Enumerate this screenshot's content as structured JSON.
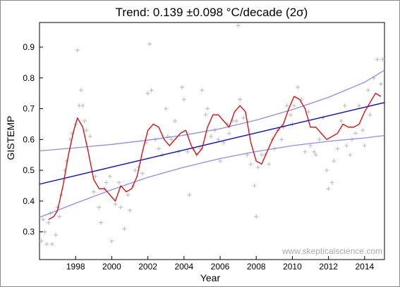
{
  "chart_data": {
    "type": "line",
    "title": "Trend: 0.139 ±0.098 °C/decade (2σ)",
    "xlabel": "Year",
    "ylabel": "GISTEMP",
    "xlim": [
      1996.0,
      2015.1
    ],
    "ylim": [
      0.21,
      0.98
    ],
    "x_ticks": [
      1998,
      2000,
      2002,
      2004,
      2006,
      2008,
      2010,
      2012,
      2014
    ],
    "y_ticks": [
      0.3,
      0.4,
      0.5,
      0.6,
      0.7,
      0.8,
      0.9
    ],
    "grid": false,
    "watermark": "www.skepticalscience.com",
    "colors": {
      "monthly": "#c0c0c0",
      "running_mean": "#e00000",
      "trend": "#0000c8",
      "confidence": "#8c8cf0"
    },
    "trend": {
      "x": [
        1996.0,
        2015.1
      ],
      "y": [
        0.455,
        0.72
      ]
    },
    "confidence_upper": {
      "x": [
        1996.0,
        1998,
        2000,
        2002,
        2004,
        2006,
        2008,
        2010,
        2012,
        2014,
        2015.1
      ],
      "y": [
        0.563,
        0.573,
        0.584,
        0.598,
        0.614,
        0.635,
        0.663,
        0.697,
        0.737,
        0.786,
        0.825
      ]
    },
    "confidence_lower": {
      "x": [
        1996.0,
        1998,
        2000,
        2002,
        2004,
        2006,
        2008,
        2010,
        2012,
        2014,
        2015.1
      ],
      "y": [
        0.347,
        0.393,
        0.437,
        0.477,
        0.51,
        0.538,
        0.561,
        0.58,
        0.594,
        0.605,
        0.613
      ]
    },
    "running_mean": {
      "x": [
        1996.5,
        1996.8,
        1997.0,
        1997.3,
        1997.6,
        1997.9,
        1998.1,
        1998.4,
        1998.7,
        1999.0,
        1999.3,
        1999.6,
        1999.9,
        2000.2,
        2000.5,
        2000.8,
        2001.1,
        2001.4,
        2001.7,
        2002.0,
        2002.3,
        2002.6,
        2002.9,
        2003.2,
        2003.5,
        2003.8,
        2004.1,
        2004.4,
        2004.7,
        2005.0,
        2005.3,
        2005.6,
        2005.9,
        2006.2,
        2006.5,
        2006.8,
        2007.1,
        2007.4,
        2007.7,
        2008.0,
        2008.3,
        2008.6,
        2008.9,
        2009.2,
        2009.5,
        2009.8,
        2010.1,
        2010.4,
        2010.7,
        2011.0,
        2011.3,
        2011.6,
        2011.9,
        2012.2,
        2012.5,
        2012.8,
        2013.1,
        2013.4,
        2013.7,
        2014.0,
        2014.3,
        2014.6,
        2014.9
      ],
      "y": [
        0.34,
        0.35,
        0.37,
        0.45,
        0.55,
        0.63,
        0.67,
        0.64,
        0.56,
        0.47,
        0.44,
        0.44,
        0.42,
        0.4,
        0.45,
        0.43,
        0.44,
        0.48,
        0.56,
        0.63,
        0.65,
        0.64,
        0.6,
        0.58,
        0.6,
        0.62,
        0.63,
        0.58,
        0.55,
        0.57,
        0.64,
        0.68,
        0.68,
        0.66,
        0.64,
        0.69,
        0.71,
        0.69,
        0.59,
        0.53,
        0.52,
        0.56,
        0.6,
        0.63,
        0.65,
        0.7,
        0.74,
        0.73,
        0.7,
        0.64,
        0.64,
        0.62,
        0.6,
        0.61,
        0.62,
        0.65,
        0.64,
        0.64,
        0.65,
        0.69,
        0.72,
        0.75,
        0.74
      ]
    },
    "monthly": {
      "x": [
        1996.1,
        1996.2,
        1996.3,
        1996.4,
        1996.5,
        1996.6,
        1996.7,
        1996.9,
        1997.0,
        1997.1,
        1997.2,
        1997.4,
        1997.5,
        1997.7,
        1997.8,
        1998.0,
        1998.1,
        1998.2,
        1998.3,
        1998.4,
        1998.5,
        1998.6,
        1998.8,
        1999.0,
        1999.1,
        1999.3,
        1999.4,
        1999.6,
        1999.7,
        1999.9,
        2000.0,
        2000.2,
        2000.4,
        2000.5,
        2000.7,
        2000.9,
        2001.0,
        2001.2,
        2001.3,
        2001.5,
        2001.7,
        2001.9,
        2002.0,
        2002.1,
        2002.2,
        2002.4,
        2002.6,
        2002.8,
        2003.0,
        2003.1,
        2003.3,
        2003.5,
        2003.7,
        2003.9,
        2004.0,
        2004.2,
        2004.3,
        2004.5,
        2004.7,
        2004.9,
        2005.0,
        2005.2,
        2005.3,
        2005.5,
        2005.7,
        2005.9,
        2006.0,
        2006.2,
        2006.4,
        2006.5,
        2006.7,
        2006.9,
        2007.0,
        2007.1,
        2007.3,
        2007.5,
        2007.7,
        2007.9,
        2008.0,
        2008.1,
        2008.3,
        2008.5,
        2008.7,
        2008.9,
        2009.0,
        2009.2,
        2009.4,
        2009.5,
        2009.7,
        2009.9,
        2010.0,
        2010.1,
        2010.3,
        2010.5,
        2010.7,
        2010.9,
        2011.0,
        2011.2,
        2011.3,
        2011.5,
        2011.7,
        2011.9,
        2012.0,
        2012.2,
        2012.3,
        2012.5,
        2012.7,
        2012.9,
        2013.0,
        2013.2,
        2013.3,
        2013.5,
        2013.7,
        2013.9,
        2014.0,
        2014.2,
        2014.3,
        2014.5,
        2014.7,
        2014.9,
        2015.0
      ],
      "y": [
        0.27,
        0.34,
        0.3,
        0.26,
        0.33,
        0.36,
        0.26,
        0.29,
        0.38,
        0.35,
        0.42,
        0.5,
        0.53,
        0.6,
        0.62,
        0.65,
        0.89,
        0.71,
        0.76,
        0.71,
        0.66,
        0.63,
        0.61,
        0.43,
        0.48,
        0.38,
        0.33,
        0.44,
        0.46,
        0.48,
        0.27,
        0.39,
        0.46,
        0.38,
        0.31,
        0.42,
        0.37,
        0.45,
        0.5,
        0.51,
        0.49,
        0.59,
        0.75,
        0.91,
        0.76,
        0.6,
        0.57,
        0.55,
        0.7,
        0.61,
        0.6,
        0.66,
        0.56,
        0.77,
        0.73,
        0.56,
        0.42,
        0.57,
        0.55,
        0.57,
        0.76,
        0.68,
        0.7,
        0.61,
        0.63,
        0.6,
        0.53,
        0.59,
        0.65,
        0.62,
        0.66,
        0.66,
        0.97,
        0.73,
        0.67,
        0.55,
        0.52,
        0.45,
        0.35,
        0.51,
        0.55,
        0.55,
        0.52,
        0.6,
        0.57,
        0.63,
        0.6,
        0.64,
        0.71,
        0.68,
        0.65,
        0.71,
        0.77,
        0.73,
        0.56,
        0.69,
        0.58,
        0.56,
        0.55,
        0.6,
        0.67,
        0.5,
        0.44,
        0.46,
        0.53,
        0.57,
        0.66,
        0.71,
        0.58,
        0.55,
        0.6,
        0.62,
        0.71,
        0.63,
        0.58,
        0.76,
        0.68,
        0.8,
        0.86,
        0.78,
        0.86
      ]
    }
  }
}
